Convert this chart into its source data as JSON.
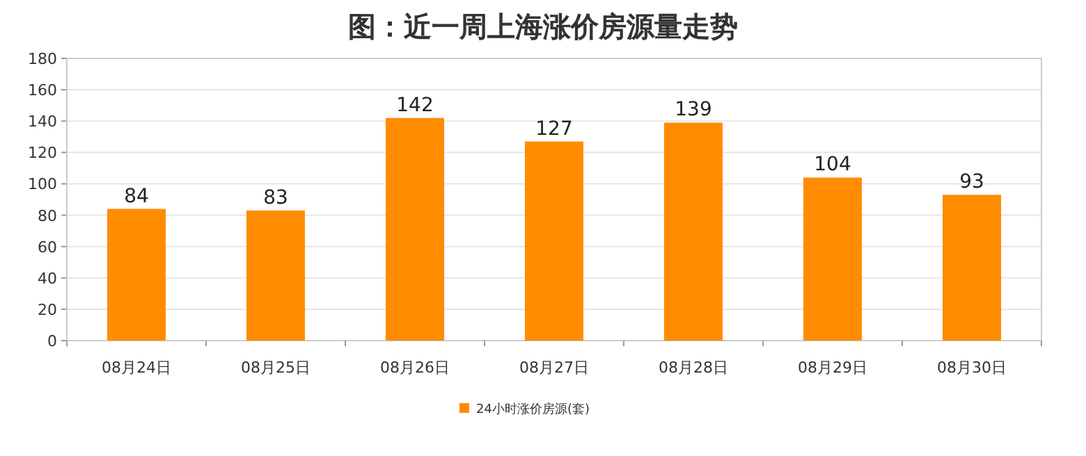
{
  "chart_data": {
    "type": "bar",
    "title": "图：近一周上海涨价房源量走势",
    "categories": [
      "08月24日",
      "08月25日",
      "08月26日",
      "08月27日",
      "08月28日",
      "08月29日",
      "08月30日"
    ],
    "series": [
      {
        "name": "24小时涨价房源(套)",
        "color": "#ff8c00",
        "values": [
          84,
          83,
          142,
          127,
          139,
          104,
          93
        ]
      }
    ],
    "ylim": [
      0,
      180
    ],
    "yticks": [
      0,
      20,
      40,
      60,
      80,
      100,
      120,
      140,
      160,
      180
    ],
    "grid": "y",
    "legend": "bottom",
    "data_labels": true
  }
}
